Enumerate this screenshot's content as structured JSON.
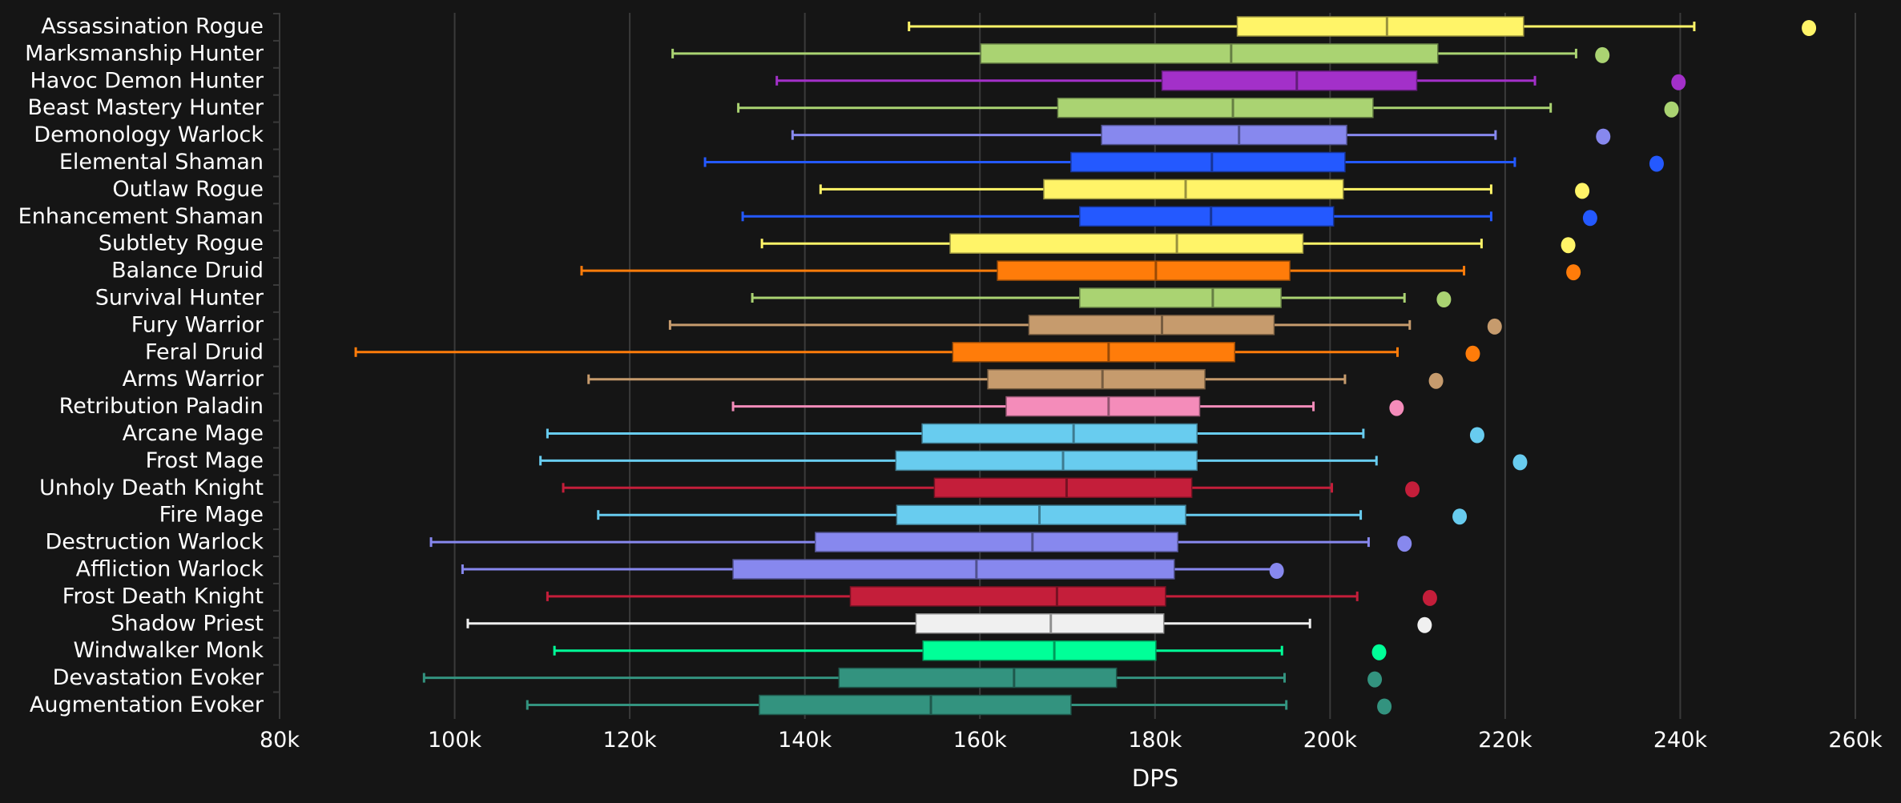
{
  "chart_data": {
    "type": "boxplot",
    "title": "",
    "xlabel": "DPS",
    "ylabel": "",
    "xlim": [
      80000,
      260000
    ],
    "x_ticks": [
      "80k",
      "100k",
      "120k",
      "140k",
      "160k",
      "180k",
      "200k",
      "220k",
      "240k",
      "260k"
    ],
    "x_tick_values": [
      80000,
      100000,
      120000,
      140000,
      160000,
      180000,
      200000,
      220000,
      240000,
      260000
    ],
    "grid": true,
    "legend": "none",
    "series": [
      {
        "name": "Assassination Rogue",
        "color": "#fff468",
        "min": 151900,
        "q1": 189400,
        "median": 206500,
        "q3": 222100,
        "max": 241600,
        "outlier": 254700
      },
      {
        "name": "Marksmanship Hunter",
        "color": "#aad372",
        "min": 124900,
        "q1": 160100,
        "median": 188700,
        "q3": 212300,
        "max": 228100,
        "outlier": 231100
      },
      {
        "name": "Havoc Demon Hunter",
        "color": "#a330c9",
        "min": 136800,
        "q1": 180800,
        "median": 196200,
        "q3": 209900,
        "max": 223400,
        "outlier": 239800
      },
      {
        "name": "Beast Mastery Hunter",
        "color": "#aad372",
        "min": 132400,
        "q1": 168900,
        "median": 188900,
        "q3": 204900,
        "max": 225200,
        "outlier": 239000
      },
      {
        "name": "Demonology Warlock",
        "color": "#8788ee",
        "min": 138600,
        "q1": 173900,
        "median": 189600,
        "q3": 201900,
        "max": 218900,
        "outlier": 231200
      },
      {
        "name": "Elemental Shaman",
        "color": "#2459ff",
        "min": 128600,
        "q1": 170400,
        "median": 186500,
        "q3": 201700,
        "max": 221100,
        "outlier": 237300
      },
      {
        "name": "Outlaw Rogue",
        "color": "#fff468",
        "min": 141800,
        "q1": 167300,
        "median": 183500,
        "q3": 201500,
        "max": 218400,
        "outlier": 228800
      },
      {
        "name": "Enhancement Shaman",
        "color": "#2459ff",
        "min": 132900,
        "q1": 171400,
        "median": 186400,
        "q3": 200400,
        "max": 218400,
        "outlier": 229700
      },
      {
        "name": "Subtlety Rogue",
        "color": "#fff468",
        "min": 135100,
        "q1": 156600,
        "median": 182500,
        "q3": 196900,
        "max": 217300,
        "outlier": 227200
      },
      {
        "name": "Balance Druid",
        "color": "#ff7c0a",
        "min": 114500,
        "q1": 162000,
        "median": 180100,
        "q3": 195400,
        "max": 215300,
        "outlier": 227800
      },
      {
        "name": "Survival Hunter",
        "color": "#aad372",
        "min": 134000,
        "q1": 171400,
        "median": 186600,
        "q3": 194400,
        "max": 208500,
        "outlier": 213000
      },
      {
        "name": "Fury Warrior",
        "color": "#c69b6d",
        "min": 124600,
        "q1": 165600,
        "median": 180800,
        "q3": 193600,
        "max": 209100,
        "outlier": 218800
      },
      {
        "name": "Feral Druid",
        "color": "#ff7c0a",
        "min": 88700,
        "q1": 156900,
        "median": 174700,
        "q3": 189100,
        "max": 207700,
        "outlier": 216300
      },
      {
        "name": "Arms Warrior",
        "color": "#c69b6d",
        "min": 115300,
        "q1": 160900,
        "median": 174000,
        "q3": 185700,
        "max": 201700,
        "outlier": 212100
      },
      {
        "name": "Retribution Paladin",
        "color": "#f48cba",
        "min": 131800,
        "q1": 163000,
        "median": 174700,
        "q3": 185100,
        "max": 198100,
        "outlier": 207600
      },
      {
        "name": "Arcane Mage",
        "color": "#68ccef",
        "min": 110600,
        "q1": 153400,
        "median": 170700,
        "q3": 184800,
        "max": 203800,
        "outlier": 216800
      },
      {
        "name": "Frost Mage",
        "color": "#68ccef",
        "min": 109800,
        "q1": 150400,
        "median": 169500,
        "q3": 184800,
        "max": 205300,
        "outlier": 221700
      },
      {
        "name": "Unholy Death Knight",
        "color": "#c41e3a",
        "min": 112400,
        "q1": 154800,
        "median": 169900,
        "q3": 184200,
        "max": 200200,
        "outlier": 209400
      },
      {
        "name": "Fire Mage",
        "color": "#68ccef",
        "min": 116400,
        "q1": 150500,
        "median": 166800,
        "q3": 183500,
        "max": 203500,
        "outlier": 214800
      },
      {
        "name": "Destruction Warlock",
        "color": "#8788ee",
        "min": 97300,
        "q1": 141200,
        "median": 166000,
        "q3": 182600,
        "max": 204400,
        "outlier": 208500
      },
      {
        "name": "Affliction Warlock",
        "color": "#8788ee",
        "min": 100900,
        "q1": 131800,
        "median": 159600,
        "q3": 182200,
        "max": 193900,
        "outlier": 193900
      },
      {
        "name": "Frost Death Knight",
        "color": "#c41e3a",
        "min": 110600,
        "q1": 145200,
        "median": 168800,
        "q3": 181200,
        "max": 203100,
        "outlier": 211400
      },
      {
        "name": "Shadow Priest",
        "color": "#f0f0f0",
        "min": 101500,
        "q1": 152700,
        "median": 168100,
        "q3": 181000,
        "max": 197700,
        "outlier": 210800
      },
      {
        "name": "Windwalker Monk",
        "color": "#00ff98",
        "min": 111400,
        "q1": 153500,
        "median": 168500,
        "q3": 180100,
        "max": 194500,
        "outlier": 205600
      },
      {
        "name": "Devastation Evoker",
        "color": "#33937f",
        "min": 96500,
        "q1": 143900,
        "median": 163900,
        "q3": 175600,
        "max": 194800,
        "outlier": 205100
      },
      {
        "name": "Augmentation Evoker",
        "color": "#33937f",
        "min": 108300,
        "q1": 134800,
        "median": 154400,
        "q3": 170400,
        "max": 195000,
        "outlier": 206200
      }
    ]
  }
}
